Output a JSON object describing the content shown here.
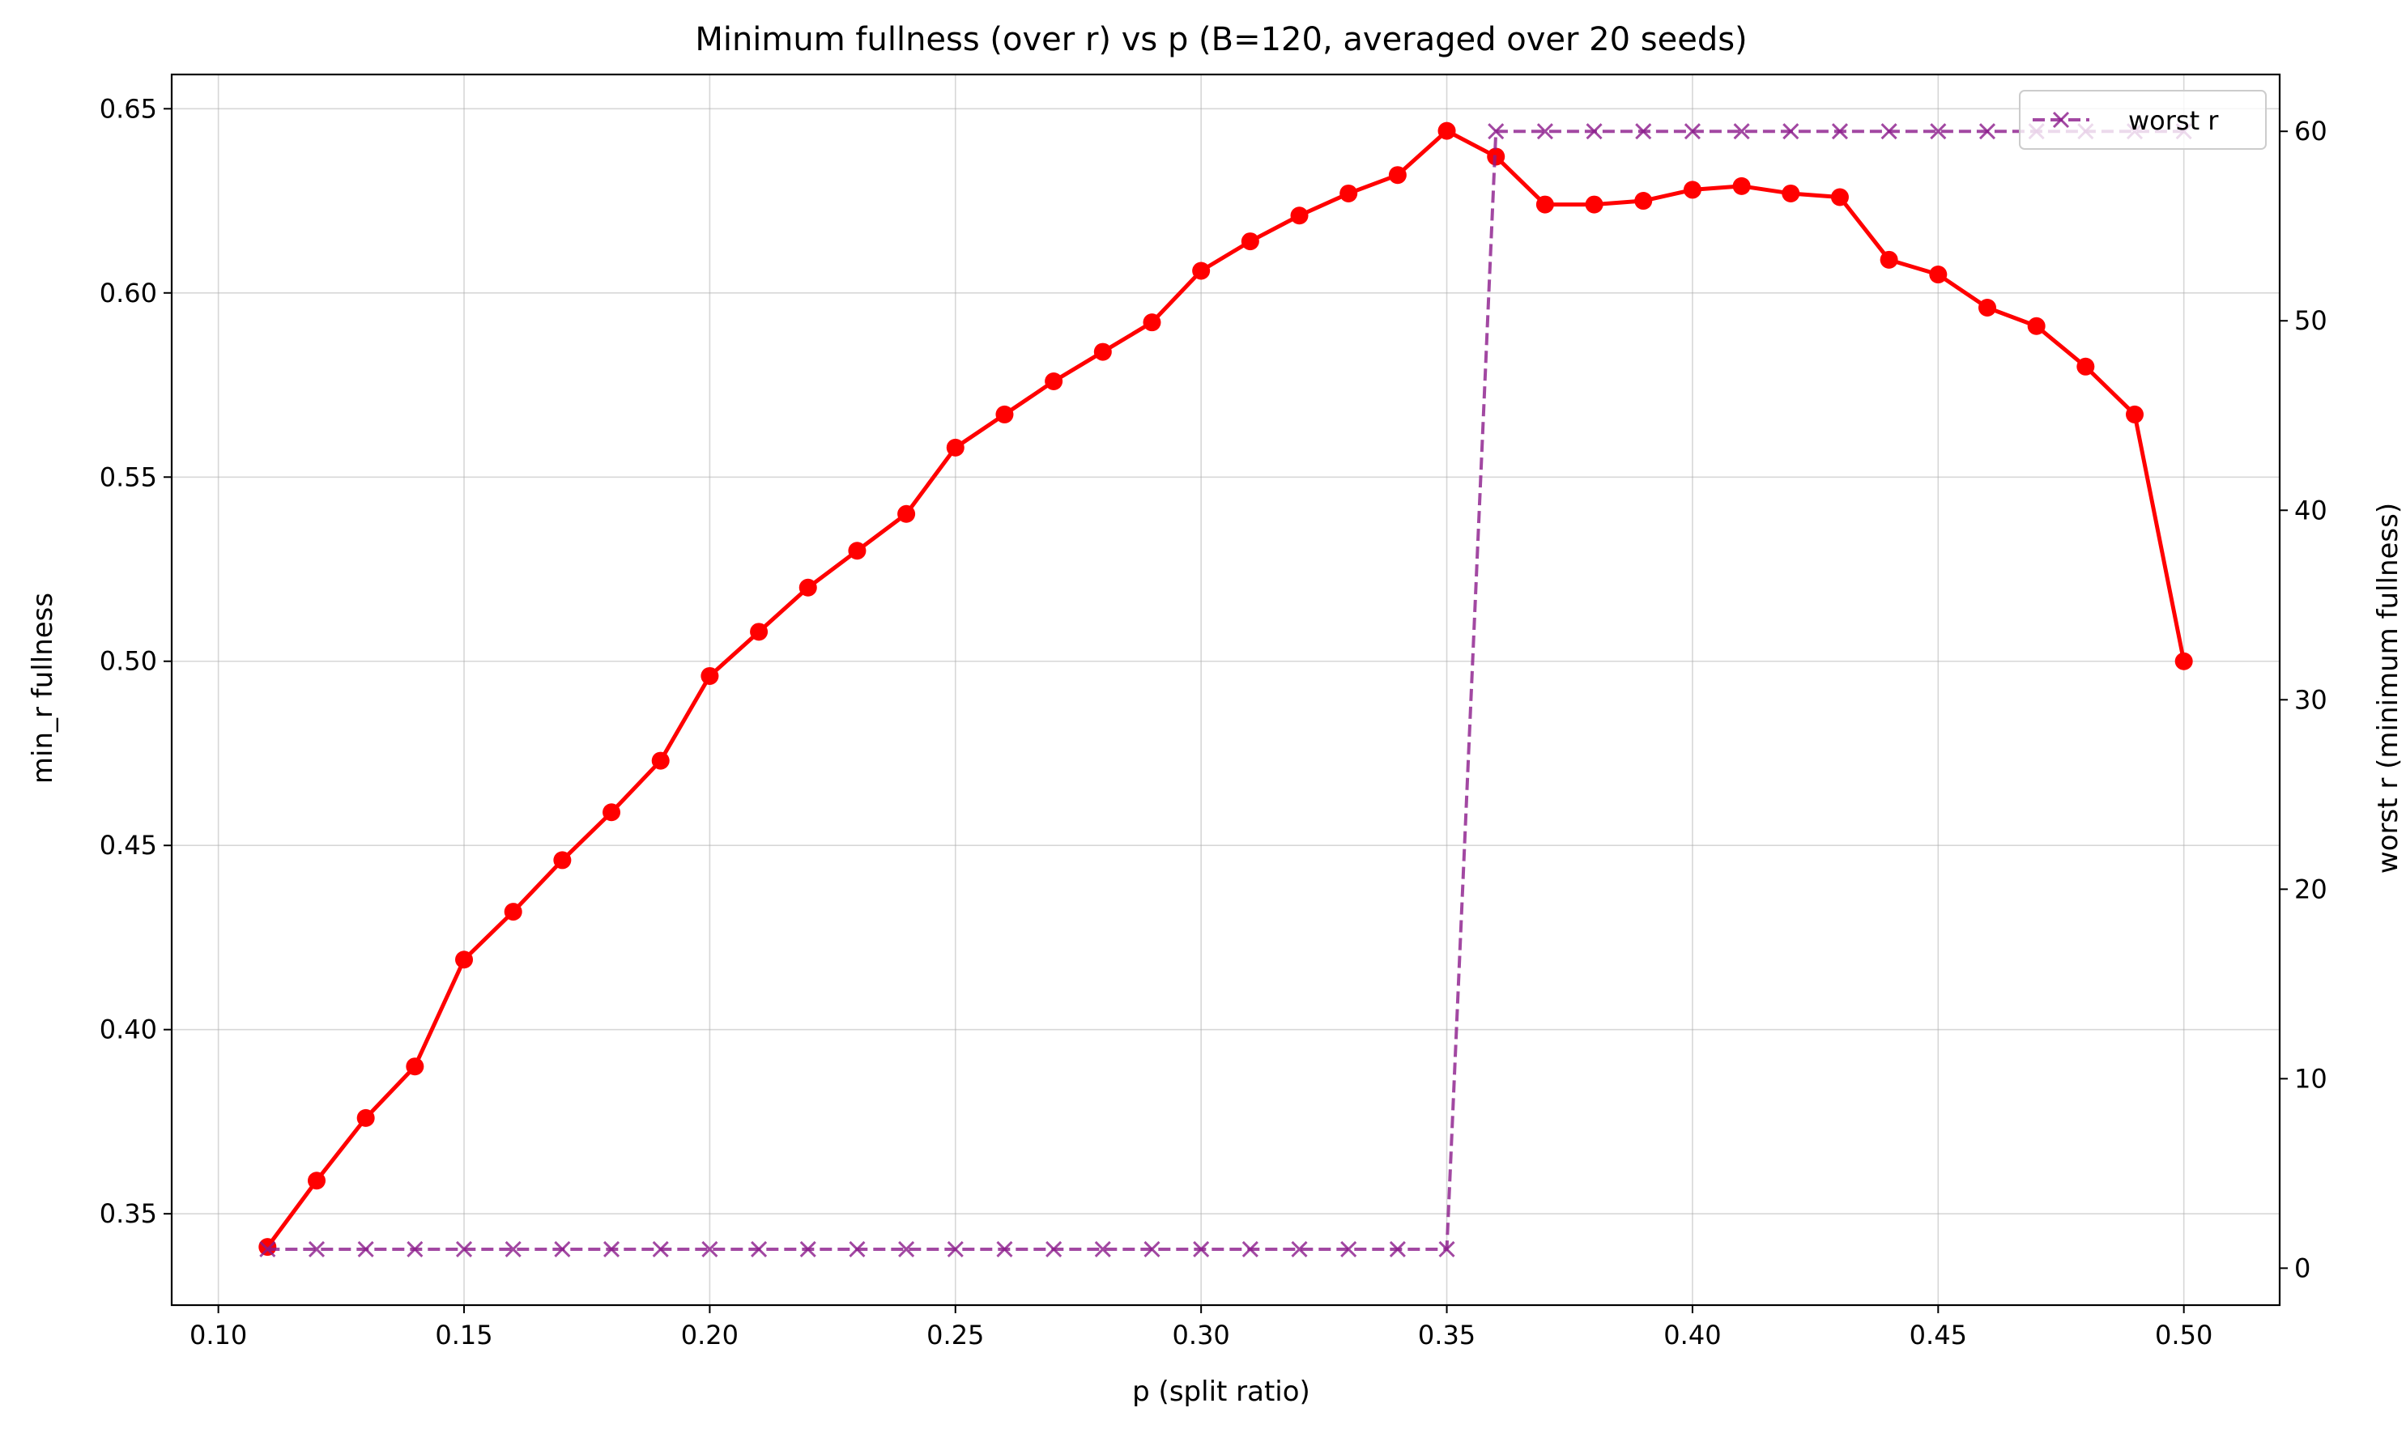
{
  "chart_data": {
    "type": "line",
    "title": "Minimum fullness (over r) vs p (B=120, averaged over 20 seeds)",
    "xlabel": "p (split ratio)",
    "ylabel": "min_r fullness",
    "y2label": "worst r (minimum fullness)",
    "xlim": [
      0.0905,
      0.5195
    ],
    "ylim": [
      0.3252,
      0.6593
    ],
    "y2lim": [
      -1.95,
      63.0
    ],
    "xticks": [
      0.1,
      0.15,
      0.2,
      0.25,
      0.3,
      0.35,
      0.4,
      0.45,
      0.5
    ],
    "xtick_labels": [
      "0.10",
      "0.15",
      "0.20",
      "0.25",
      "0.30",
      "0.35",
      "0.40",
      "0.45",
      "0.50"
    ],
    "yticks": [
      0.35,
      0.4,
      0.45,
      0.5,
      0.55,
      0.6,
      0.65
    ],
    "ytick_labels": [
      "0.35",
      "0.40",
      "0.45",
      "0.50",
      "0.55",
      "0.60",
      "0.65"
    ],
    "y2ticks": [
      0,
      10,
      20,
      30,
      40,
      50,
      60
    ],
    "y2tick_labels": [
      "0",
      "10",
      "20",
      "30",
      "40",
      "50",
      "60"
    ],
    "grid": true,
    "legend_position": "top-right",
    "x": [
      0.11,
      0.12,
      0.13,
      0.14,
      0.15,
      0.16,
      0.17,
      0.18,
      0.19,
      0.2,
      0.21,
      0.22,
      0.23,
      0.24,
      0.25,
      0.26,
      0.27,
      0.28,
      0.29,
      0.3,
      0.31,
      0.32,
      0.33,
      0.34,
      0.35,
      0.36,
      0.37,
      0.38,
      0.39,
      0.4,
      0.41,
      0.42,
      0.43,
      0.44,
      0.45,
      0.46,
      0.47,
      0.48,
      0.49,
      0.5
    ],
    "series": [
      {
        "axis": "left",
        "color": "#ff0000",
        "marker": "circle",
        "line_style": "solid",
        "values": [
          0.341,
          0.359,
          0.376,
          0.39,
          0.419,
          0.432,
          0.446,
          0.459,
          0.473,
          0.496,
          0.508,
          0.52,
          0.53,
          0.54,
          0.558,
          0.567,
          0.576,
          0.584,
          0.592,
          0.606,
          0.614,
          0.621,
          0.627,
          0.632,
          0.644,
          0.637,
          0.624,
          0.624,
          0.625,
          0.628,
          0.629,
          0.627,
          0.626,
          0.609,
          0.605,
          0.596,
          0.591,
          0.58,
          0.567,
          0.5
        ]
      },
      {
        "name": "worst r",
        "axis": "right",
        "color": "#8b1a8b",
        "marker": "x",
        "line_style": "dashed",
        "values": [
          1,
          1,
          1,
          1,
          1,
          1,
          1,
          1,
          1,
          1,
          1,
          1,
          1,
          1,
          1,
          1,
          1,
          1,
          1,
          1,
          1,
          1,
          1,
          1,
          1,
          60,
          60,
          60,
          60,
          60,
          60,
          60,
          60,
          60,
          60,
          60,
          60,
          60,
          60,
          60
        ]
      }
    ]
  }
}
